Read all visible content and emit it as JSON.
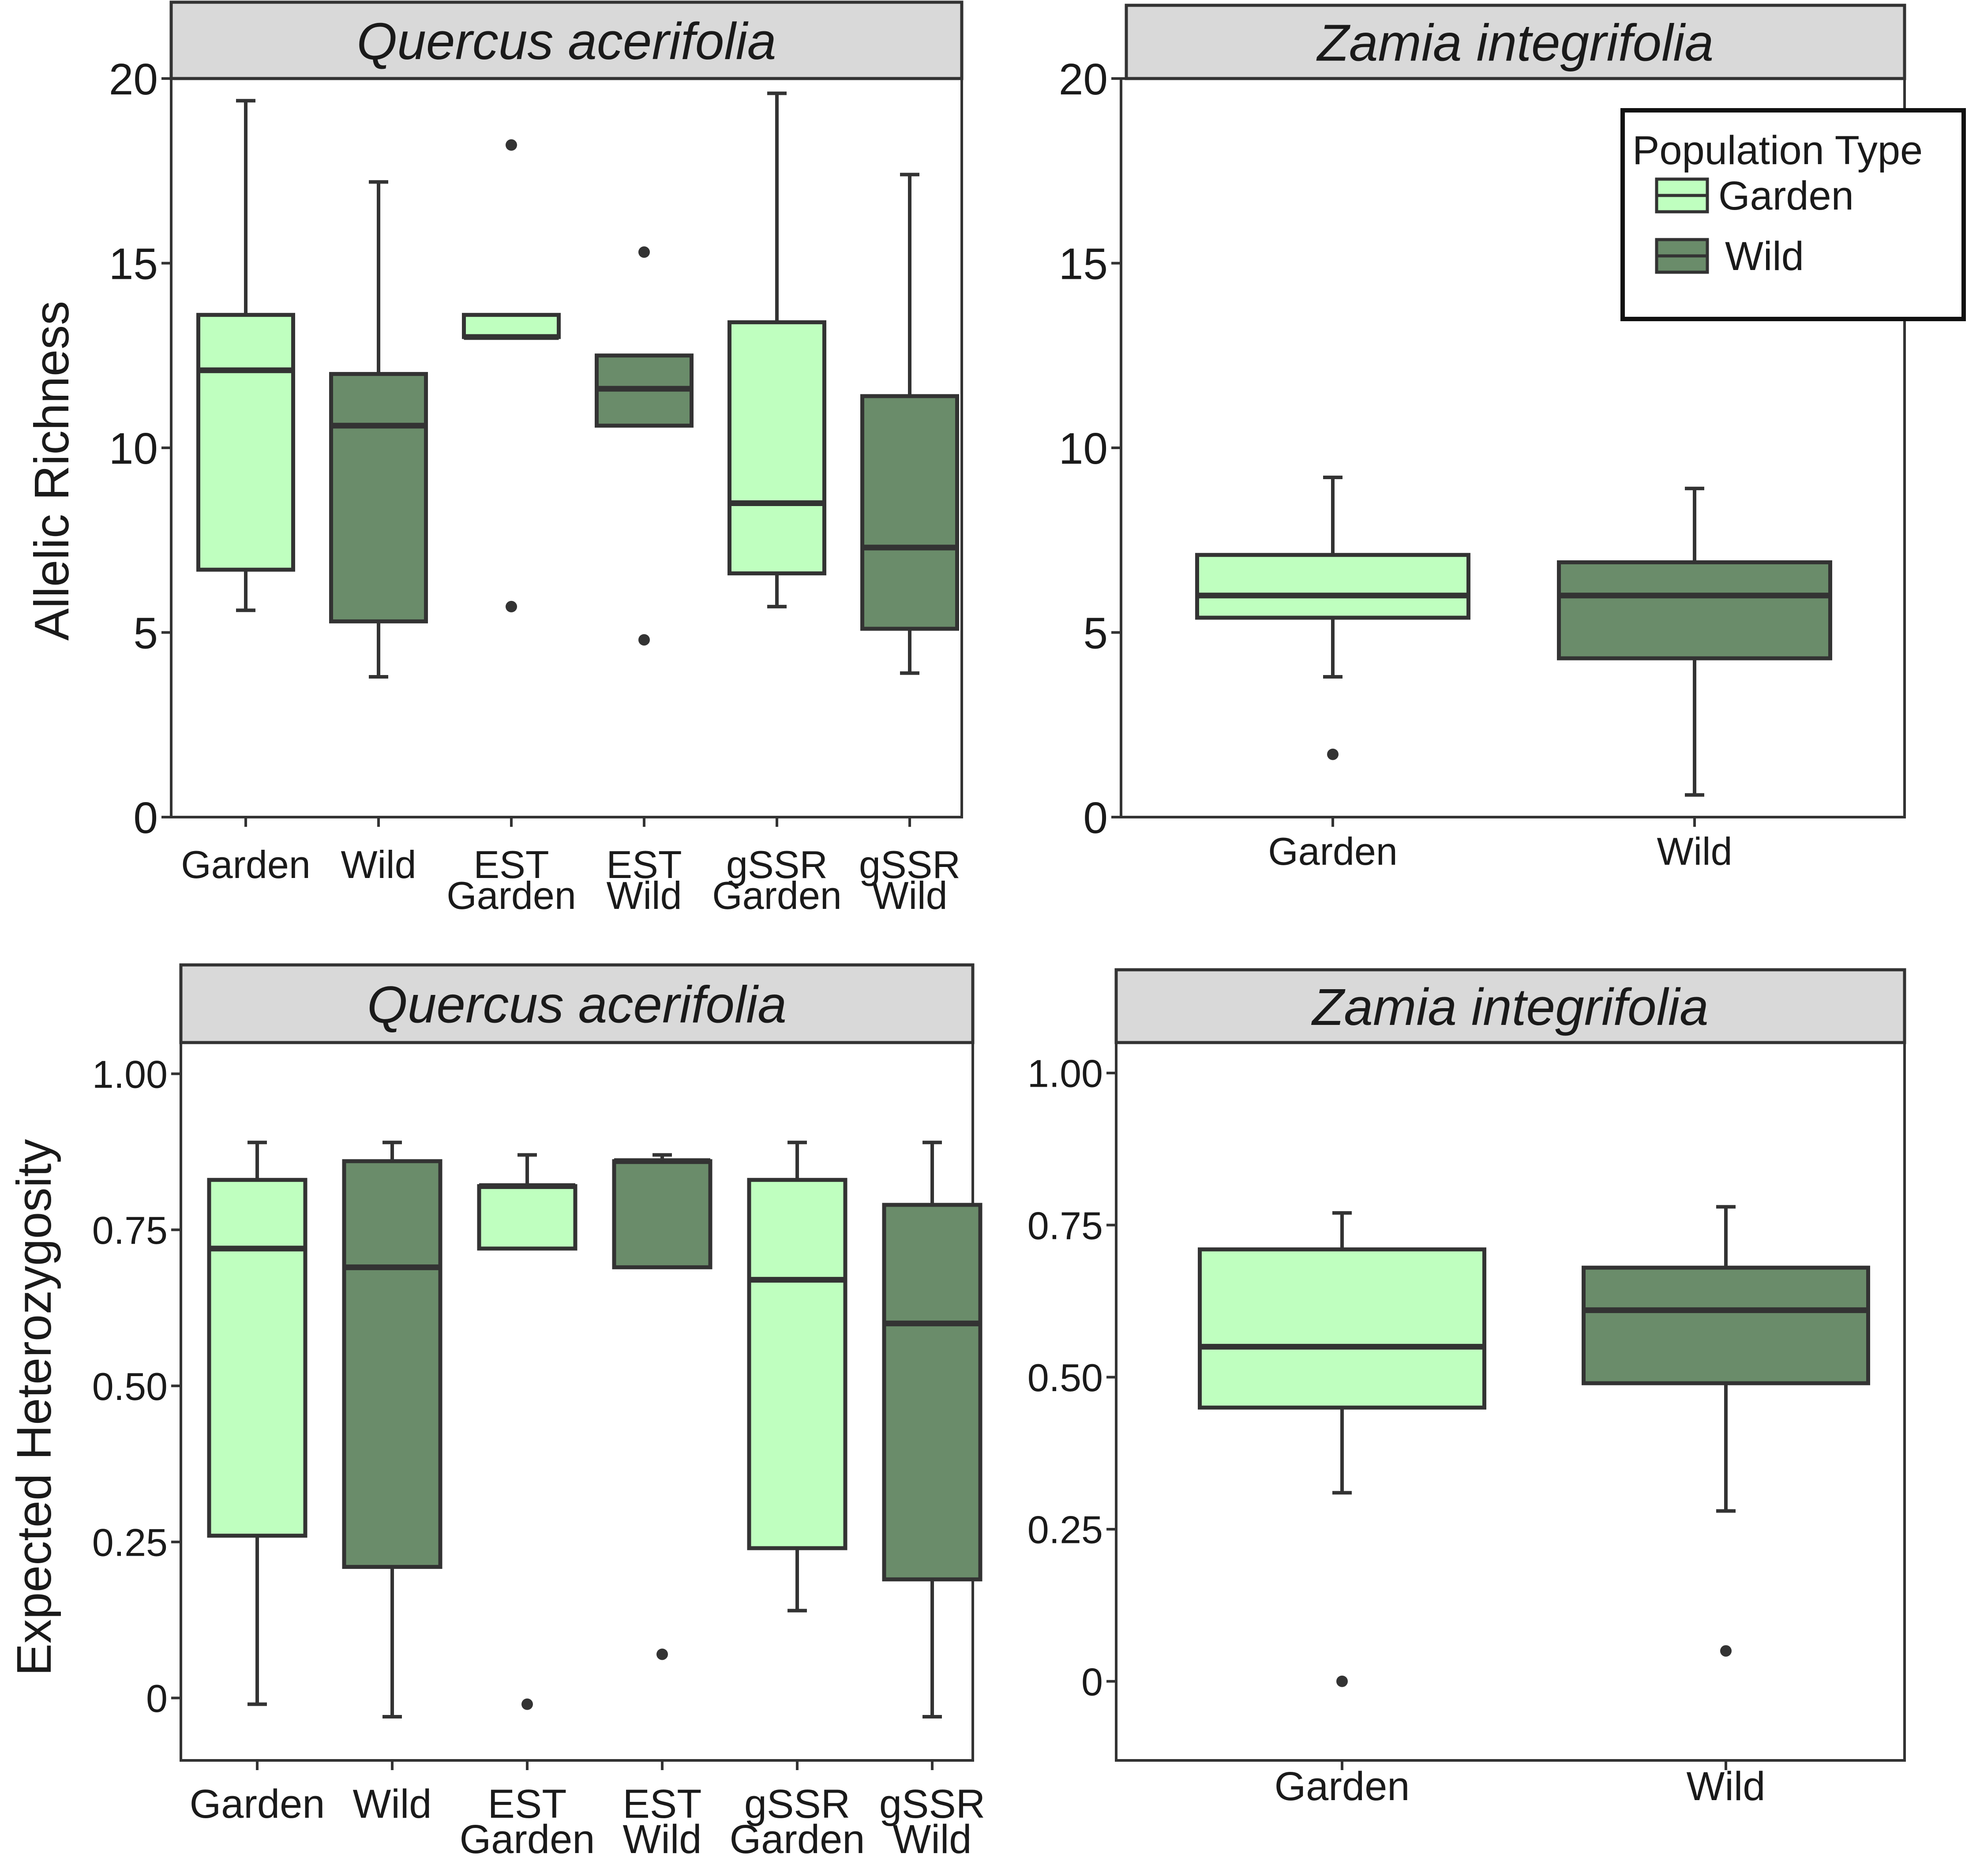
{
  "colors": {
    "garden": "#bfffbf",
    "wild": "#6a8c6a",
    "stroke": "#333333",
    "strip": "#d9d9d9"
  },
  "legend": {
    "title": "Population Type",
    "items": [
      {
        "label": "Garden",
        "group": "garden"
      },
      {
        "label": "Wild",
        "group": "wild"
      }
    ]
  },
  "chart_data": [
    {
      "type": "box",
      "title": "Quercus acerifolia",
      "ylabel": "Allelic Richness",
      "ylim": [
        0,
        20
      ],
      "yticks": [
        0,
        5,
        10,
        15,
        20
      ],
      "ytick_labels": [
        "0",
        "5",
        "10",
        "15",
        "20"
      ],
      "grid": false,
      "categories": [
        {
          "label": [
            "Garden"
          ],
          "group": "garden",
          "min": 5.6,
          "q1": 6.7,
          "median": 12.1,
          "q3": 13.6,
          "max": 19.4,
          "outliers": []
        },
        {
          "label": [
            "Wild"
          ],
          "group": "wild",
          "min": 3.8,
          "q1": 5.3,
          "median": 10.6,
          "q3": 12.0,
          "max": 17.2,
          "outliers": []
        },
        {
          "label": [
            "EST",
            "Garden"
          ],
          "group": "garden",
          "min": 13.0,
          "q1": 13.0,
          "median": 13.0,
          "q3": 13.6,
          "max": 13.6,
          "outliers": [
            5.7,
            18.2
          ]
        },
        {
          "label": [
            "EST",
            "Wild"
          ],
          "group": "wild",
          "min": 10.6,
          "q1": 10.6,
          "median": 11.6,
          "q3": 12.5,
          "max": 12.5,
          "outliers": [
            4.8,
            15.3
          ]
        },
        {
          "label": [
            "gSSR",
            "Garden"
          ],
          "group": "garden",
          "min": 5.7,
          "q1": 6.6,
          "median": 8.5,
          "q3": 13.4,
          "max": 19.6,
          "outliers": []
        },
        {
          "label": [
            "gSSR",
            "Wild"
          ],
          "group": "wild",
          "min": 3.9,
          "q1": 5.1,
          "median": 7.3,
          "q3": 11.4,
          "max": 17.4,
          "outliers": []
        }
      ]
    },
    {
      "type": "box",
      "title": "Zamia integrifolia",
      "ylabel": "",
      "ylim": [
        0,
        20
      ],
      "yticks": [
        0,
        5,
        10,
        15,
        20
      ],
      "ytick_labels": [
        "0",
        "5",
        "10",
        "15",
        "20"
      ],
      "grid": false,
      "legend_position": "top-right",
      "categories": [
        {
          "label": [
            "Garden"
          ],
          "group": "garden",
          "min": 3.8,
          "q1": 5.4,
          "median": 6.0,
          "q3": 7.1,
          "max": 9.2,
          "outliers": [
            1.7
          ]
        },
        {
          "label": [
            "Wild"
          ],
          "group": "wild",
          "min": 0.6,
          "q1": 4.3,
          "median": 6.0,
          "q3": 6.9,
          "max": 8.9,
          "outliers": []
        }
      ]
    },
    {
      "type": "box",
      "title": "Quercus acerifolia",
      "ylabel": "Expected Heterozygosity",
      "ylim": [
        -0.1,
        1.05
      ],
      "yticks": [
        0,
        0.25,
        0.5,
        0.75,
        1.0
      ],
      "ytick_labels": [
        "0",
        "0.25",
        "0.50",
        "0.75",
        "1.00"
      ],
      "grid": false,
      "categories": [
        {
          "label": [
            "Garden"
          ],
          "group": "garden",
          "min": -0.01,
          "q1": 0.26,
          "median": 0.72,
          "q3": 0.83,
          "max": 0.89,
          "outliers": []
        },
        {
          "label": [
            "Wild"
          ],
          "group": "wild",
          "min": -0.03,
          "q1": 0.21,
          "median": 0.69,
          "q3": 0.86,
          "max": 0.89,
          "outliers": []
        },
        {
          "label": [
            "EST",
            "Garden"
          ],
          "group": "garden",
          "min": 0.72,
          "q1": 0.72,
          "median": 0.82,
          "q3": 0.82,
          "max": 0.87,
          "outliers": [
            -0.01
          ]
        },
        {
          "label": [
            "EST",
            "Wild"
          ],
          "group": "wild",
          "min": 0.69,
          "q1": 0.69,
          "median": 0.86,
          "q3": 0.86,
          "max": 0.87,
          "outliers": [
            0.07
          ]
        },
        {
          "label": [
            "gSSR",
            "Garden"
          ],
          "group": "garden",
          "min": 0.14,
          "q1": 0.24,
          "median": 0.67,
          "q3": 0.83,
          "max": 0.89,
          "outliers": []
        },
        {
          "label": [
            "gSSR",
            "Wild"
          ],
          "group": "wild",
          "min": -0.03,
          "q1": 0.19,
          "median": 0.6,
          "q3": 0.79,
          "max": 0.89,
          "outliers": []
        }
      ]
    },
    {
      "type": "box",
      "title": "Zamia integrifolia",
      "ylabel": "",
      "ylim": [
        -0.13,
        1.05
      ],
      "yticks": [
        0,
        0.25,
        0.5,
        0.75,
        1.0
      ],
      "ytick_labels": [
        "0",
        "0.25",
        "0.50",
        "0.75",
        "1.00"
      ],
      "grid": false,
      "categories": [
        {
          "label": [
            "Garden"
          ],
          "group": "garden",
          "min": 0.31,
          "q1": 0.45,
          "median": 0.55,
          "q3": 0.71,
          "max": 0.77,
          "outliers": [
            0.0
          ]
        },
        {
          "label": [
            "Wild"
          ],
          "group": "wild",
          "min": 0.28,
          "q1": 0.49,
          "median": 0.61,
          "q3": 0.68,
          "max": 0.78,
          "outliers": [
            0.05
          ]
        }
      ]
    }
  ]
}
